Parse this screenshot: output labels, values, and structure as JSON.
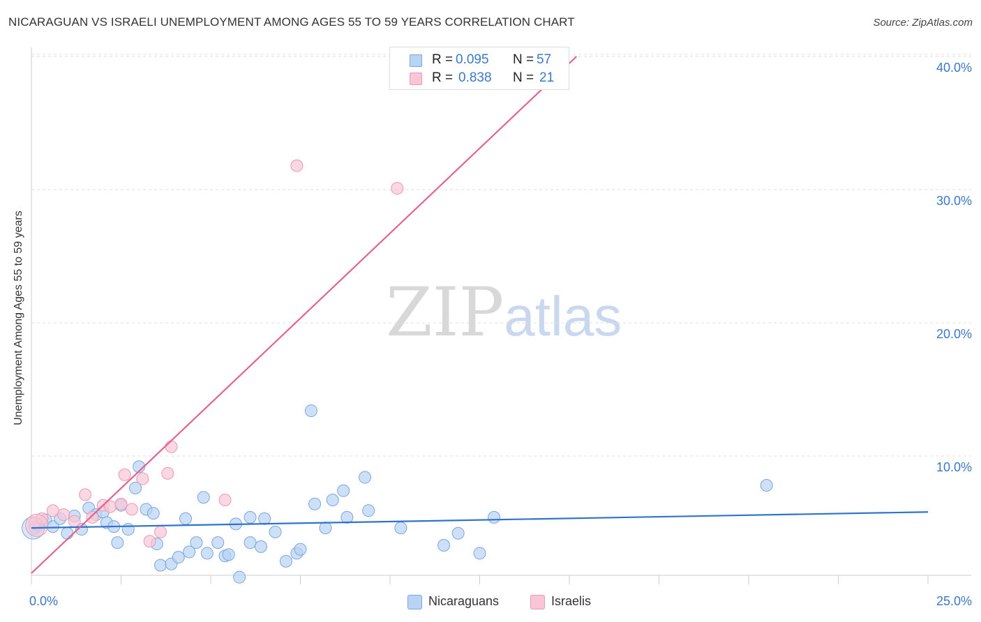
{
  "header": {
    "title": "NICARAGUAN VS ISRAELI UNEMPLOYMENT AMONG AGES 55 TO 59 YEARS CORRELATION CHART",
    "source": "Source: ZipAtlas.com"
  },
  "watermark": {
    "zip": "ZIP",
    "atlas": "atlas"
  },
  "legend": {
    "rows": [
      {
        "r_label": "R =",
        "r_value": "0.095",
        "n_label": "N =",
        "n_value": "57"
      },
      {
        "r_label": "R =",
        "r_value": "0.838",
        "n_label": "N =",
        "n_value": "21"
      }
    ]
  },
  "bottom_legend": {
    "series1": "Nicaraguans",
    "series2": "Israelis"
  },
  "chart_data": {
    "type": "scatter",
    "title": "NICARAGUAN VS ISRAELI UNEMPLOYMENT AMONG AGES 55 TO 59 YEARS CORRELATION CHART",
    "xlabel": "",
    "ylabel": "Unemployment Among Ages 55 to 59 years",
    "xlim": [
      0,
      25
    ],
    "ylim": [
      0,
      42
    ],
    "x_tick_labels": [
      "0.0%",
      "25.0%"
    ],
    "y_ticks": [
      10,
      20,
      30,
      40
    ],
    "y_tick_labels": [
      "10.0%",
      "20.0%",
      "30.0%",
      "40.0%"
    ],
    "grid": true,
    "legend_position": "top-center",
    "colors": {
      "nicaraguans_fill": "#b9d3f5",
      "nicaraguans_stroke": "#7aa6dd",
      "nicaraguans_line": "#2f74cc",
      "israelis_fill": "#f8c6d5",
      "israelis_stroke": "#eb9ab3",
      "israelis_line": "#e4638d"
    },
    "series": [
      {
        "name": "Nicaraguans",
        "trend": {
          "x": [
            0,
            25
          ],
          "y": [
            4.6,
            5.8
          ]
        },
        "points": [
          {
            "x": 0.1,
            "y": 4.6
          },
          {
            "x": 0.2,
            "y": 4.8
          },
          {
            "x": 0.4,
            "y": 5.2
          },
          {
            "x": 0.6,
            "y": 4.7
          },
          {
            "x": 0.8,
            "y": 5.3
          },
          {
            "x": 1.0,
            "y": 4.2
          },
          {
            "x": 1.2,
            "y": 5.5
          },
          {
            "x": 1.4,
            "y": 4.5
          },
          {
            "x": 1.6,
            "y": 6.1
          },
          {
            "x": 1.8,
            "y": 5.6
          },
          {
            "x": 2.0,
            "y": 5.8
          },
          {
            "x": 2.1,
            "y": 5.0
          },
          {
            "x": 2.3,
            "y": 4.7
          },
          {
            "x": 2.4,
            "y": 3.5
          },
          {
            "x": 2.5,
            "y": 6.3
          },
          {
            "x": 2.7,
            "y": 4.5
          },
          {
            "x": 2.9,
            "y": 7.6
          },
          {
            "x": 3.0,
            "y": 9.2
          },
          {
            "x": 3.2,
            "y": 6.0
          },
          {
            "x": 3.4,
            "y": 5.7
          },
          {
            "x": 3.5,
            "y": 3.4
          },
          {
            "x": 3.6,
            "y": 1.8
          },
          {
            "x": 3.9,
            "y": 1.9
          },
          {
            "x": 4.1,
            "y": 2.4
          },
          {
            "x": 4.3,
            "y": 5.3
          },
          {
            "x": 4.4,
            "y": 2.8
          },
          {
            "x": 4.6,
            "y": 3.5
          },
          {
            "x": 4.8,
            "y": 6.9
          },
          {
            "x": 4.9,
            "y": 2.7
          },
          {
            "x": 5.2,
            "y": 3.5
          },
          {
            "x": 5.4,
            "y": 2.5
          },
          {
            "x": 5.5,
            "y": 2.6
          },
          {
            "x": 5.7,
            "y": 4.9
          },
          {
            "x": 5.8,
            "y": 0.9
          },
          {
            "x": 6.1,
            "y": 3.5
          },
          {
            "x": 6.1,
            "y": 5.4
          },
          {
            "x": 6.4,
            "y": 3.2
          },
          {
            "x": 6.5,
            "y": 5.3
          },
          {
            "x": 6.8,
            "y": 4.3
          },
          {
            "x": 7.1,
            "y": 2.1
          },
          {
            "x": 7.4,
            "y": 2.7
          },
          {
            "x": 7.5,
            "y": 3.0
          },
          {
            "x": 7.8,
            "y": 13.4
          },
          {
            "x": 7.9,
            "y": 6.4
          },
          {
            "x": 8.2,
            "y": 4.6
          },
          {
            "x": 8.4,
            "y": 6.7
          },
          {
            "x": 8.7,
            "y": 7.4
          },
          {
            "x": 8.8,
            "y": 5.4
          },
          {
            "x": 9.3,
            "y": 8.4
          },
          {
            "x": 9.4,
            "y": 5.9
          },
          {
            "x": 10.3,
            "y": 4.6
          },
          {
            "x": 11.5,
            "y": 3.3
          },
          {
            "x": 11.9,
            "y": 4.2
          },
          {
            "x": 12.5,
            "y": 2.7
          },
          {
            "x": 12.9,
            "y": 5.4
          },
          {
            "x": 20.5,
            "y": 7.8
          },
          {
            "x": 0.05,
            "y": 4.6
          }
        ]
      },
      {
        "name": "Israelis",
        "trend": {
          "x": [
            0,
            15.2
          ],
          "y": [
            1.2,
            40
          ]
        },
        "points": [
          {
            "x": 0.1,
            "y": 5.0
          },
          {
            "x": 0.3,
            "y": 5.3
          },
          {
            "x": 0.6,
            "y": 5.9
          },
          {
            "x": 0.9,
            "y": 5.6
          },
          {
            "x": 1.2,
            "y": 5.1
          },
          {
            "x": 1.5,
            "y": 7.1
          },
          {
            "x": 1.7,
            "y": 5.4
          },
          {
            "x": 2.0,
            "y": 6.3
          },
          {
            "x": 2.2,
            "y": 6.2
          },
          {
            "x": 2.5,
            "y": 6.4
          },
          {
            "x": 2.6,
            "y": 8.6
          },
          {
            "x": 2.8,
            "y": 6.0
          },
          {
            "x": 3.1,
            "y": 8.3
          },
          {
            "x": 3.3,
            "y": 3.6
          },
          {
            "x": 3.6,
            "y": 4.3
          },
          {
            "x": 3.8,
            "y": 8.7
          },
          {
            "x": 3.9,
            "y": 10.7
          },
          {
            "x": 5.4,
            "y": 6.7
          },
          {
            "x": 7.4,
            "y": 31.8
          },
          {
            "x": 10.2,
            "y": 30.1
          },
          {
            "x": 0.15,
            "y": 4.8
          }
        ]
      }
    ]
  }
}
